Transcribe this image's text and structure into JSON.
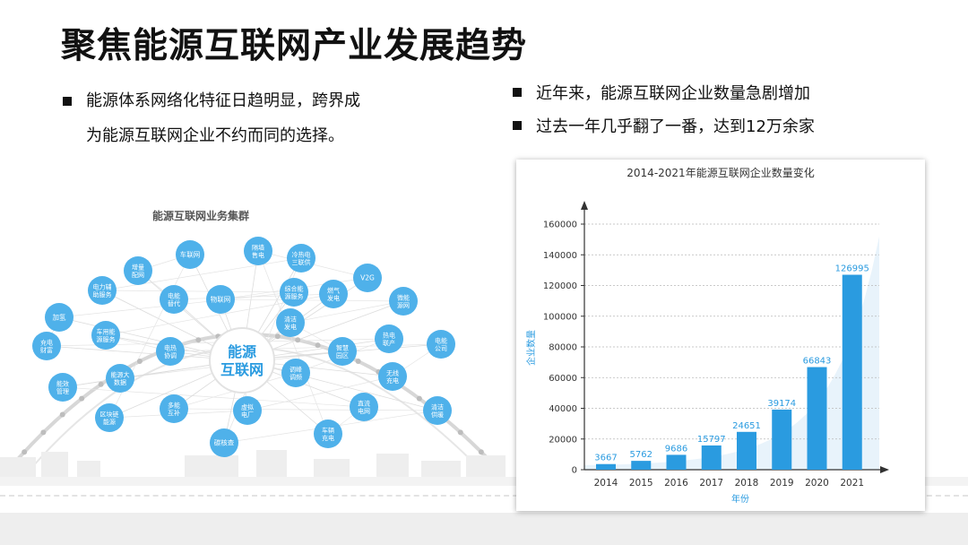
{
  "slide": {
    "title": "聚焦能源互联网产业发展趋势",
    "left_bullet": {
      "line1": "能源体系网络化特征日趋明显，跨界成",
      "line2": "为能源互联网企业不约而同的选择。"
    },
    "right_bullets": [
      "近年来，能源互联网企业数量急剧增加",
      "过去一年几乎翻了一番，达到12万余家"
    ]
  },
  "cluster": {
    "title": "能源互联网业务集群",
    "center": [
      "能源",
      "互联网"
    ],
    "nodes": [
      {
        "label": [
          "车联网"
        ]
      },
      {
        "label": [
          "隔墙",
          "售电"
        ]
      },
      {
        "label": [
          "冷热电",
          "三联供"
        ]
      },
      {
        "label": [
          "增量",
          "配网"
        ]
      },
      {
        "label": [
          "V2G"
        ]
      },
      {
        "label": [
          "电力辅",
          "助服务"
        ]
      },
      {
        "label": [
          "电能",
          "替代"
        ]
      },
      {
        "label": [
          "物联网"
        ]
      },
      {
        "label": [
          "综合能",
          "源服务"
        ]
      },
      {
        "label": [
          "燃气",
          "发电"
        ]
      },
      {
        "label": [
          "微能",
          "源网"
        ]
      },
      {
        "label": [
          "加氢"
        ]
      },
      {
        "label": [
          "车用能",
          "源服务"
        ]
      },
      {
        "label": [
          "清洁",
          "发电"
        ]
      },
      {
        "label": [
          "充电",
          "财富"
        ]
      },
      {
        "label": [
          "电热",
          "协调"
        ]
      },
      {
        "label": [
          "智慧",
          "园区"
        ]
      },
      {
        "label": [
          "热电",
          "联产"
        ]
      },
      {
        "label": [
          "电能",
          "公司"
        ]
      },
      {
        "label": [
          "能源大",
          "数据"
        ]
      },
      {
        "label": [
          "调峰",
          "调频"
        ]
      },
      {
        "label": [
          "无线",
          "充电"
        ]
      },
      {
        "label": [
          "能效",
          "管理"
        ]
      },
      {
        "label": [
          "多能",
          "互补"
        ]
      },
      {
        "label": [
          "虚拟",
          "电厂"
        ]
      },
      {
        "label": [
          "直流",
          "电网"
        ]
      },
      {
        "label": [
          "清洁",
          "供暖"
        ]
      },
      {
        "label": [
          "区块链",
          "能源"
        ]
      },
      {
        "label": [
          "车辆",
          "充电"
        ]
      },
      {
        "label": [
          "碳核查"
        ]
      }
    ]
  },
  "chart_data": {
    "type": "bar",
    "title": "2014-2021年能源互联网企业数量变化",
    "xlabel": "年份",
    "ylabel": "企业数量",
    "categories": [
      "2014",
      "2015",
      "2016",
      "2017",
      "2018",
      "2019",
      "2020",
      "2021"
    ],
    "values": [
      3667,
      5762,
      9686,
      15797,
      24651,
      39174,
      66843,
      126995
    ],
    "ylim": [
      0,
      160000
    ],
    "yticks": [
      0,
      20000,
      40000,
      60000,
      80000,
      100000,
      120000,
      140000,
      160000
    ],
    "grid": true,
    "bar_color": "#2a9be0",
    "label_color": "#2a9be0"
  }
}
